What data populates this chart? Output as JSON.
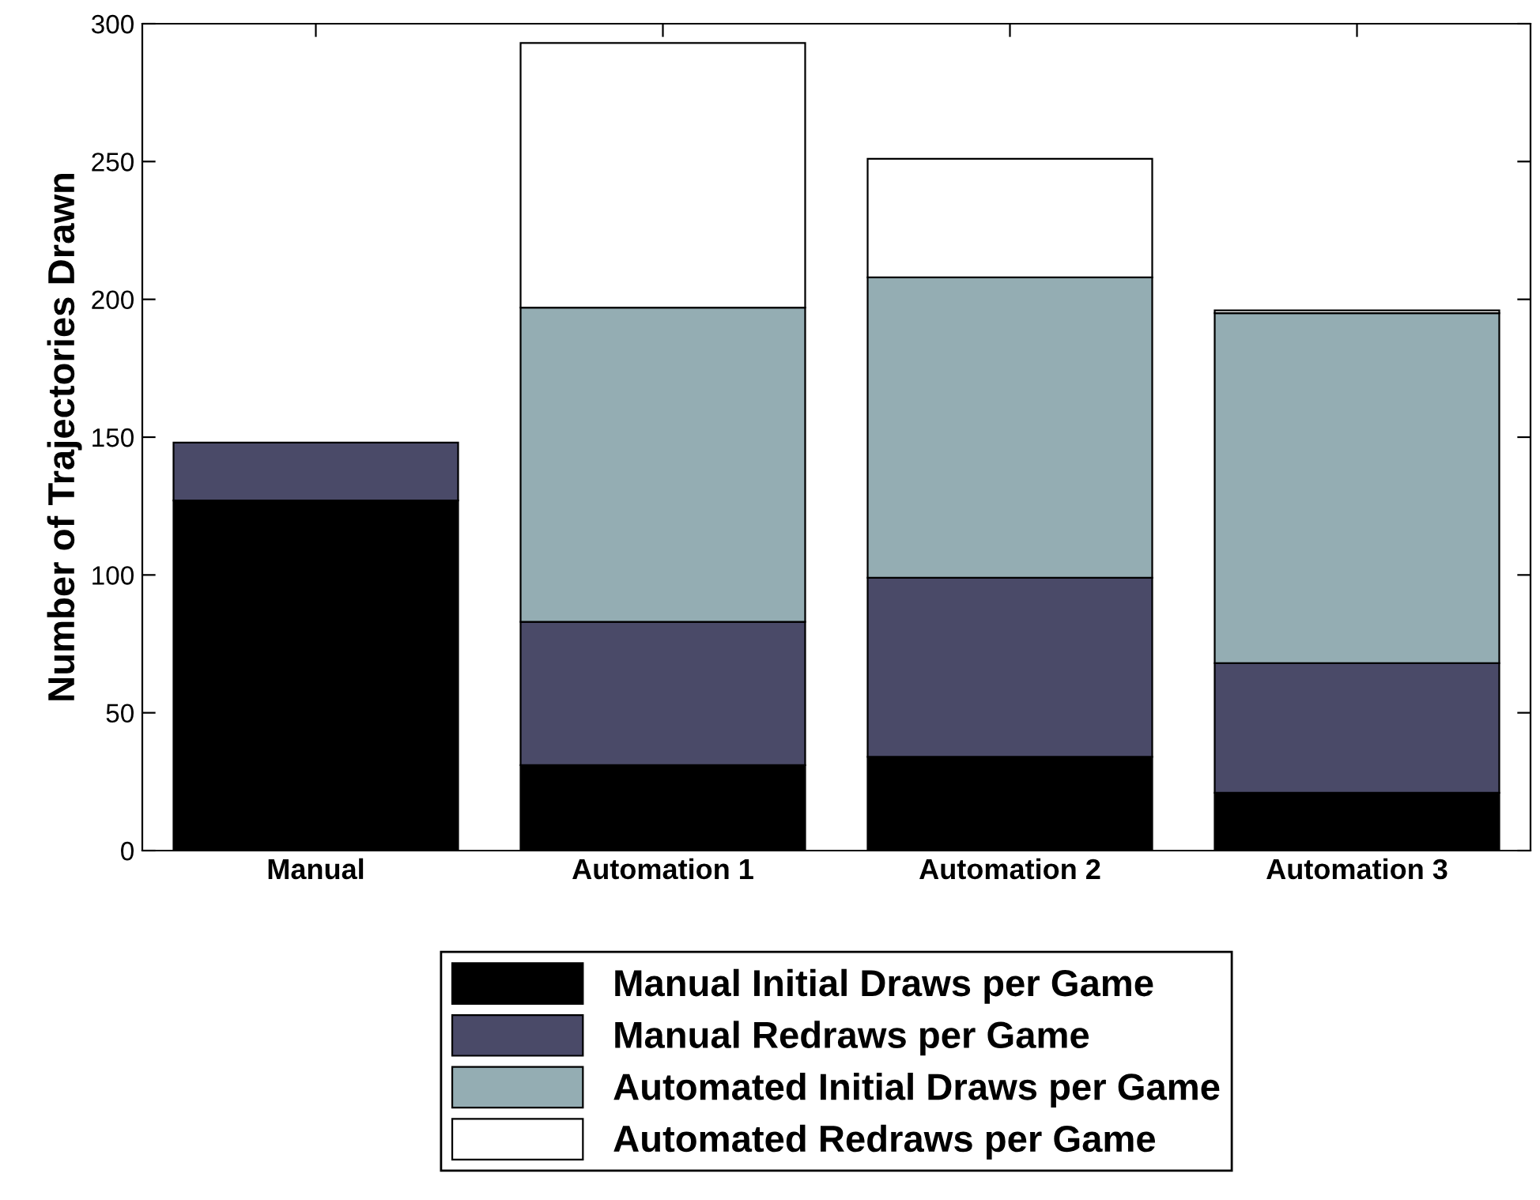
{
  "chart_data": {
    "type": "bar",
    "stacked": true,
    "ylabel": "Number of Trajectories Drawn",
    "categories": [
      "Manual",
      "Automation 1",
      "Automation 2",
      "Automation 3"
    ],
    "series": [
      {
        "name": "Manual Initial Draws per Game",
        "color": "#000000",
        "values": [
          127,
          31,
          34,
          21
        ]
      },
      {
        "name": "Manual Redraws per Game",
        "color": "#4a4a68",
        "values": [
          21,
          52,
          65,
          47
        ]
      },
      {
        "name": "Automated Initial Draws per Game",
        "color": "#94adb3",
        "values": [
          null,
          114,
          109,
          127
        ]
      },
      {
        "name": "Automated Redraws per Game",
        "color": "#ffffff",
        "values": [
          null,
          96,
          43,
          1
        ]
      }
    ],
    "ylim": [
      0,
      300
    ],
    "yticks": [
      0,
      50,
      100,
      150,
      200,
      250,
      300
    ],
    "grid": false,
    "legend": "bottom"
  }
}
